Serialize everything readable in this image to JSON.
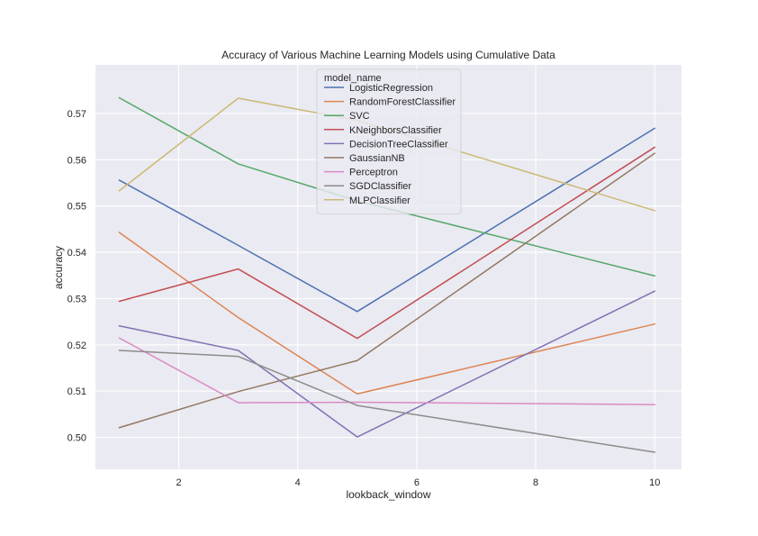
{
  "chart_data": {
    "type": "line",
    "title": "Accuracy of Various Machine Learning Models using Cumulative Data",
    "xlabel": "lookback_window",
    "ylabel": "accuracy",
    "x": [
      1,
      3,
      5,
      10
    ],
    "xlim": [
      0.6,
      10.45
    ],
    "ylim": [
      0.4931,
      0.5805
    ],
    "xticks": [
      2,
      4,
      6,
      8,
      10
    ],
    "xtick_labels": [
      "2",
      "4",
      "6",
      "8",
      "10"
    ],
    "yticks": [
      0.5,
      0.51,
      0.52,
      0.53,
      0.54,
      0.55,
      0.56,
      0.57
    ],
    "ytick_labels": [
      "0.50",
      "0.51",
      "0.52",
      "0.53",
      "0.54",
      "0.55",
      "0.56",
      "0.57"
    ],
    "grid": true,
    "background": "#EAEAF2",
    "legend": {
      "title": "model_name",
      "placement": "top-center"
    },
    "series": [
      {
        "name": "LogisticRegression",
        "color": "#4C72B0",
        "values": [
          0.5556,
          0.5415,
          0.5272,
          0.5668
        ]
      },
      {
        "name": "RandomForestClassifier",
        "color": "#DD8452",
        "values": [
          0.5443,
          0.5259,
          0.5094,
          0.5245
        ]
      },
      {
        "name": "SVC",
        "color": "#55A868",
        "values": [
          0.5734,
          0.5591,
          0.5511,
          0.5349
        ]
      },
      {
        "name": "KNeighborsClassifier",
        "color": "#C44E52",
        "values": [
          0.5294,
          0.5364,
          0.5214,
          0.5627
        ]
      },
      {
        "name": "DecisionTreeClassifier",
        "color": "#8172B3",
        "values": [
          0.5241,
          0.5188,
          0.5001,
          0.5316
        ]
      },
      {
        "name": "GaussianNB",
        "color": "#937860",
        "values": [
          0.5021,
          0.5099,
          0.5166,
          0.5614
        ]
      },
      {
        "name": "Perceptron",
        "color": "#DA8BC3",
        "values": [
          0.5215,
          0.5075,
          0.5076,
          0.5071
        ]
      },
      {
        "name": "SGDClassifier",
        "color": "#8C8C8C",
        "values": [
          0.5188,
          0.5175,
          0.5069,
          0.4968
        ]
      },
      {
        "name": "MLPClassifier",
        "color": "#CCB974",
        "values": [
          0.5533,
          0.5733,
          0.5685,
          0.549
        ]
      }
    ]
  }
}
